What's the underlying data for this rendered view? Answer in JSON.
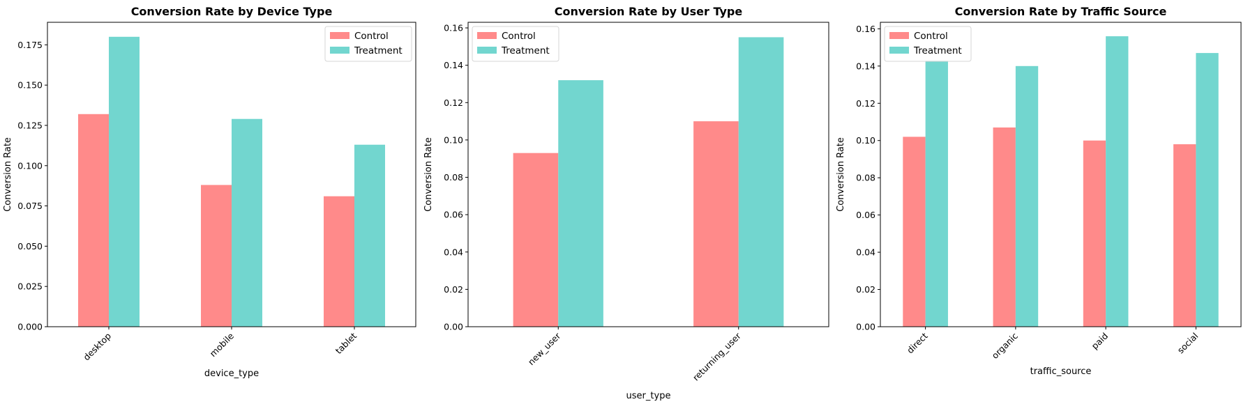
{
  "colors": {
    "control": "#ff8a8a",
    "treatment": "#72d6cf",
    "axis": "#000000"
  },
  "chart_data": [
    {
      "type": "bar",
      "title": "Conversion Rate by Device Type",
      "xlabel": "device_type",
      "ylabel": "Conversion Rate",
      "categories": [
        "desktop",
        "mobile",
        "tablet"
      ],
      "series": [
        {
          "name": "Control",
          "values": [
            0.132,
            0.088,
            0.081
          ]
        },
        {
          "name": "Treatment",
          "values": [
            0.18,
            0.129,
            0.113
          ]
        }
      ],
      "ylim": [
        0,
        0.189
      ],
      "yticks": [
        0.0,
        0.025,
        0.05,
        0.075,
        0.1,
        0.125,
        0.15,
        0.175
      ],
      "ytick_labels": [
        "0.000",
        "0.025",
        "0.050",
        "0.075",
        "0.100",
        "0.125",
        "0.150",
        "0.175"
      ],
      "legend": "top-right",
      "grid": false
    },
    {
      "type": "bar",
      "title": "Conversion Rate by User Type",
      "xlabel": "user_type",
      "ylabel": "Conversion Rate",
      "categories": [
        "new_user",
        "returning_user"
      ],
      "series": [
        {
          "name": "Control",
          "values": [
            0.093,
            0.11
          ]
        },
        {
          "name": "Treatment",
          "values": [
            0.132,
            0.155
          ]
        }
      ],
      "ylim": [
        0,
        0.163
      ],
      "yticks": [
        0.0,
        0.02,
        0.04,
        0.06,
        0.08,
        0.1,
        0.12,
        0.14,
        0.16
      ],
      "ytick_labels": [
        "0.00",
        "0.02",
        "0.04",
        "0.06",
        "0.08",
        "0.10",
        "0.12",
        "0.14",
        "0.16"
      ],
      "legend": "top-left",
      "grid": false
    },
    {
      "type": "bar",
      "title": "Conversion Rate by Traffic Source",
      "xlabel": "traffic_source",
      "ylabel": "Conversion Rate",
      "categories": [
        "direct",
        "organic",
        "paid",
        "social"
      ],
      "series": [
        {
          "name": "Control",
          "values": [
            0.102,
            0.107,
            0.1,
            0.098
          ]
        },
        {
          "name": "Treatment",
          "values": [
            0.143,
            0.14,
            0.156,
            0.147
          ]
        }
      ],
      "ylim": [
        0,
        0.1635
      ],
      "yticks": [
        0.0,
        0.02,
        0.04,
        0.06,
        0.08,
        0.1,
        0.12,
        0.14,
        0.16
      ],
      "ytick_labels": [
        "0.00",
        "0.02",
        "0.04",
        "0.06",
        "0.08",
        "0.10",
        "0.12",
        "0.14",
        "0.16"
      ],
      "legend": "top-left",
      "grid": false
    }
  ]
}
